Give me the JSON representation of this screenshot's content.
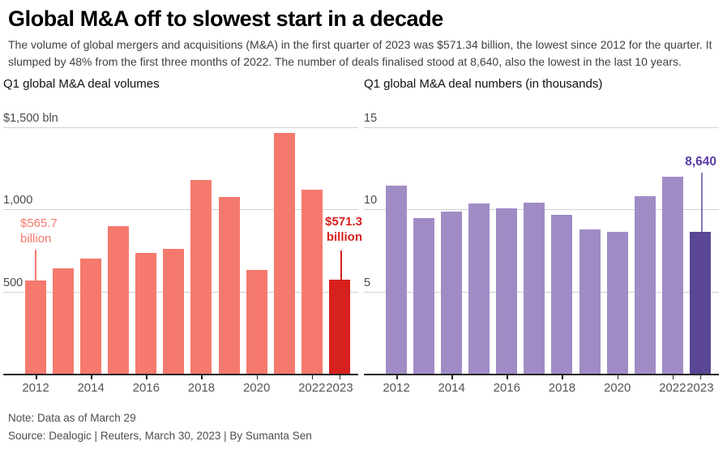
{
  "title": "Global M&A off to slowest start in a decade",
  "subtitle": "The volume of global mergers and acquisitions (M&A) in the first quarter of 2023 was $571.34 billion, the lowest since 2012 for the quarter. It slumped by 48% from the first three months of 2022. The number of deals finalised stood at 8,640, also the lowest in the last 10 years.",
  "note": "Note: Data as of March 29",
  "source": "Source: Dealogic | Reuters, March 30, 2023 | By Sumanta Sen",
  "chart_data": [
    {
      "type": "bar",
      "title": "Q1 global M&A deal volumes",
      "categories": [
        "2012",
        "2013",
        "2014",
        "2015",
        "2016",
        "2017",
        "2018",
        "2019",
        "2020",
        "2021",
        "2022",
        "2023"
      ],
      "values": [
        565.7,
        640,
        700,
        900,
        735,
        760,
        1180,
        1075,
        630,
        1465,
        1120,
        571.3
      ],
      "ylim": [
        0,
        1500
      ],
      "yticks": [
        {
          "value": 1500,
          "label": "$1,500 bln"
        },
        {
          "value": 1000,
          "label": "1,000"
        },
        {
          "value": 500,
          "label": "500"
        }
      ],
      "x_tick_labels": [
        "2012",
        "2014",
        "2016",
        "2018",
        "2020",
        "2022",
        "2023"
      ],
      "bar_color": "#f5796d",
      "highlight_index": 11,
      "highlight_color": "#d7211e",
      "grid": true,
      "legend": "none",
      "annotations": [
        {
          "label": "$565.7 billion",
          "line1": "$565.7",
          "line2": "billion",
          "year": "2012",
          "emphasis": false
        },
        {
          "label": "$571.3 billion",
          "line1": "$571.3",
          "line2": "billion",
          "year": "2023",
          "emphasis": true
        }
      ]
    },
    {
      "type": "bar",
      "title": "Q1 global M&A deal numbers (in thousands)",
      "categories": [
        "2012",
        "2013",
        "2014",
        "2015",
        "2016",
        "2017",
        "2018",
        "2019",
        "2020",
        "2021",
        "2022",
        "2023"
      ],
      "values": [
        11.45,
        9.5,
        9.85,
        10.35,
        10.05,
        10.4,
        9.65,
        8.8,
        8.65,
        10.8,
        12.0,
        8.64
      ],
      "ylim": [
        0,
        15
      ],
      "yticks": [
        {
          "value": 15,
          "label": "15"
        },
        {
          "value": 10,
          "label": "10"
        },
        {
          "value": 5,
          "label": "5"
        }
      ],
      "x_tick_labels": [
        "2012",
        "2014",
        "2016",
        "2018",
        "2020",
        "2022",
        "2023"
      ],
      "bar_color": "#a08cc5",
      "highlight_index": 11,
      "highlight_color": "#5a4695",
      "annotation_color": "#5b3ba6",
      "annotation_line_color": "#8a76bd",
      "grid": true,
      "legend": "none",
      "annotations": [
        {
          "label": "8,640",
          "line1": "8,640",
          "year": "2023",
          "emphasis": true
        }
      ]
    }
  ]
}
